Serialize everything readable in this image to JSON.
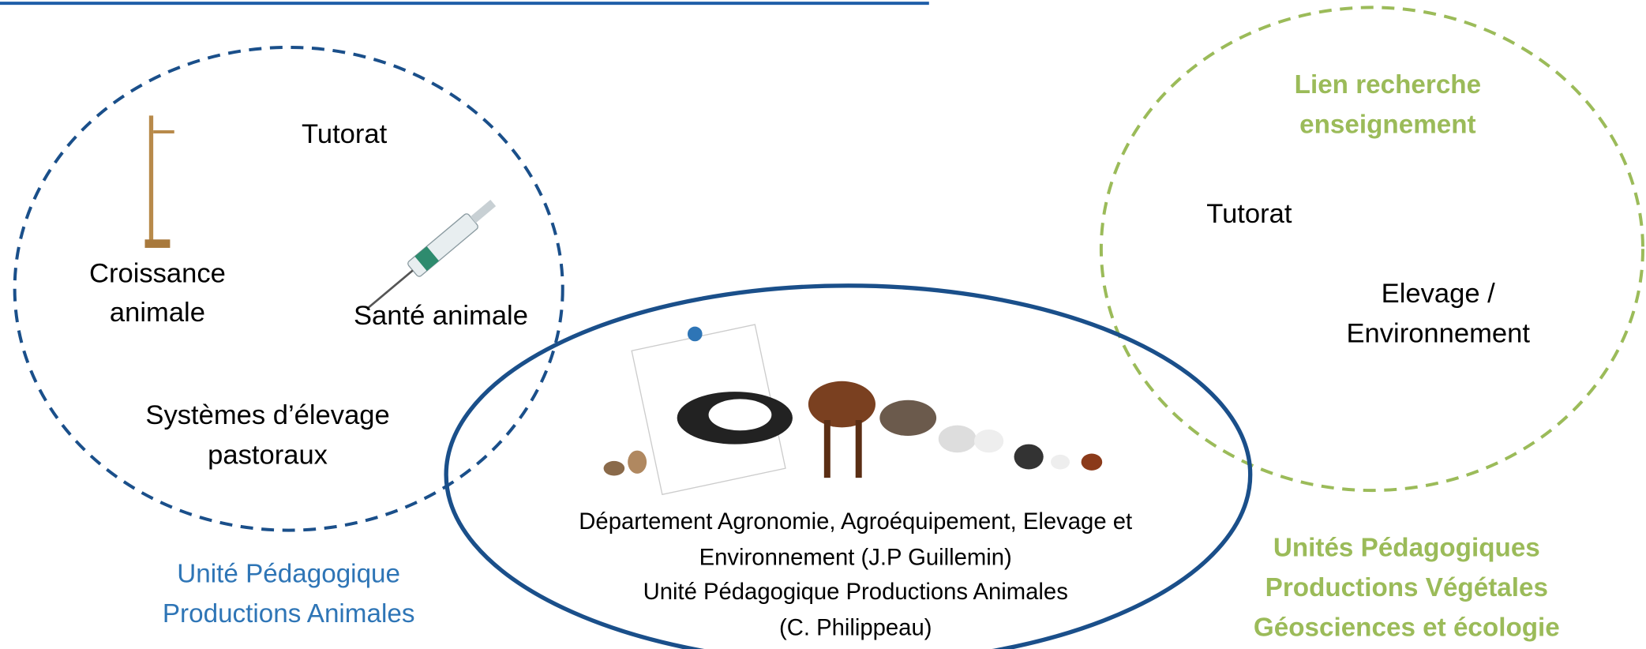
{
  "left_group": {
    "items": [
      "Tutorat",
      [
        "Croissance",
        "animale"
      ],
      "Santé animale",
      [
        "Systèmes d’élevage",
        "pastoraux"
      ]
    ],
    "caption": [
      "Unité Pédagogique",
      "Productions Animales"
    ]
  },
  "right_group": {
    "title": [
      "Lien recherche",
      "enseignement"
    ],
    "items": [
      "Tutorat",
      [
        "Elevage /",
        "Environnement"
      ]
    ],
    "caption": [
      "Unités Pédagogiques",
      "Productions Végétales",
      "Géosciences et écologie"
    ]
  },
  "center": {
    "lines": [
      "Département Agronomie, Agroéquipement, Elevage et",
      "Environnement (J.P Guillemin)",
      "Unité Pédagogique Productions Animales",
      "(C. Philippeau)"
    ]
  }
}
